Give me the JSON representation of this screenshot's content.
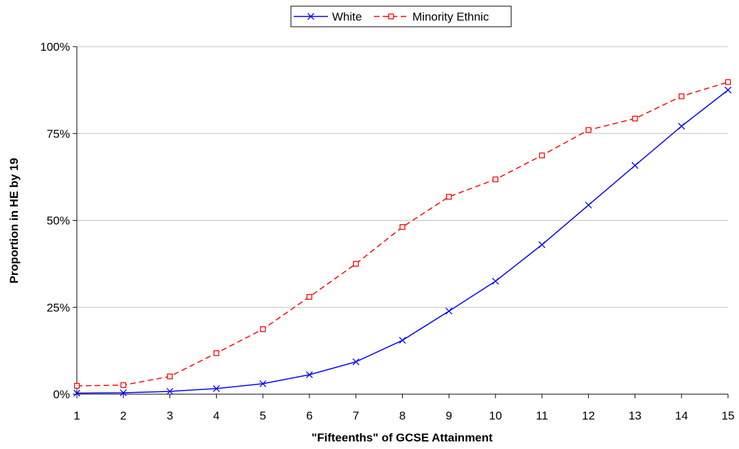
{
  "chart_data": {
    "type": "line",
    "title": "",
    "xlabel": "\"Fifteenths\" of GCSE Attainment",
    "ylabel": "Proportion in HE by 19",
    "x": [
      1,
      2,
      3,
      4,
      5,
      6,
      7,
      8,
      9,
      10,
      11,
      12,
      13,
      14,
      15
    ],
    "ylim": [
      0,
      100
    ],
    "yticks": [
      "0%",
      "25%",
      "50%",
      "75%",
      "100%"
    ],
    "grid": "horizontal",
    "legend_position": "top",
    "series": [
      {
        "name": "White",
        "color": "#0000ff",
        "line_style": "solid",
        "marker": "x",
        "values": [
          0.3,
          0.4,
          0.8,
          1.6,
          3.0,
          5.6,
          9.3,
          15.5,
          23.9,
          32.5,
          43.0,
          54.4,
          65.8,
          77.1,
          87.5
        ]
      },
      {
        "name": "Minority Ethnic",
        "color": "#ff0000",
        "line_style": "dashed",
        "marker": "square",
        "values": [
          2.4,
          2.6,
          5.1,
          11.8,
          18.7,
          28.0,
          37.5,
          48.1,
          56.8,
          61.8,
          68.7,
          76.0,
          79.3,
          85.7,
          89.8
        ]
      }
    ]
  }
}
